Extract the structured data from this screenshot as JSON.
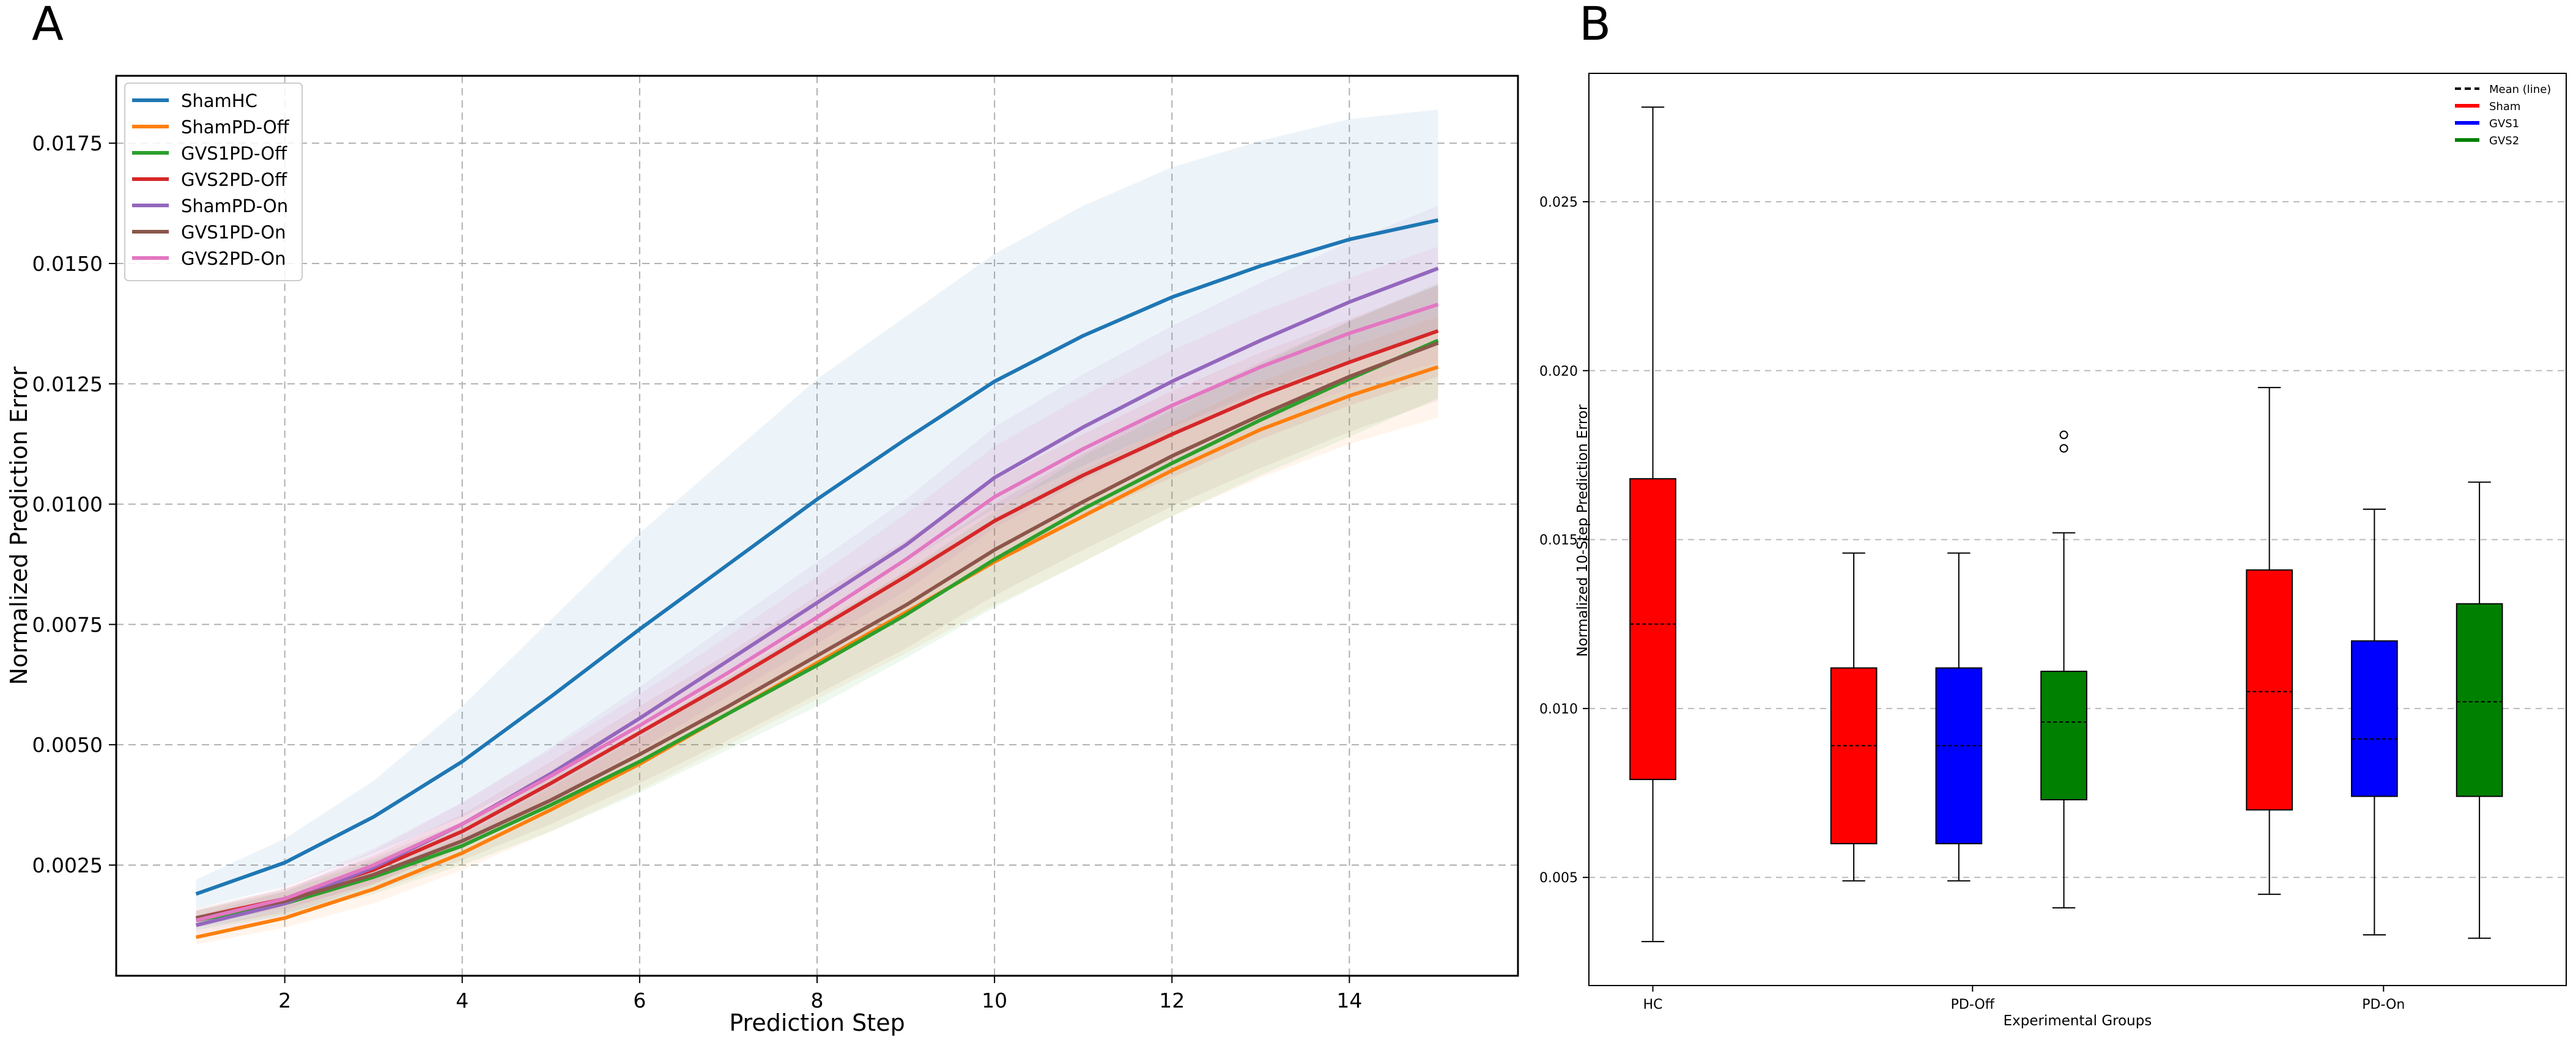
{
  "panel_a_label": "A",
  "panel_b_label": "B",
  "chart_data": [
    {
      "type": "line",
      "panel": "A",
      "title": "",
      "xlabel": "Prediction Step",
      "ylabel": "Normalized Prediction Error",
      "xlim": [
        0.1,
        15.9
      ],
      "ylim": [
        0.0002,
        0.0189
      ],
      "xticks": [
        2,
        4,
        6,
        8,
        10,
        12,
        14
      ],
      "yticks": [
        0.0025,
        0.005,
        0.0075,
        0.01,
        0.0125,
        0.015,
        0.0175
      ],
      "ytick_labels": [
        "0.0025",
        "0.0050",
        "0.0075",
        "0.0100",
        "0.0125",
        "0.0150",
        "0.0175"
      ],
      "grid": true,
      "legend_position": "top-left",
      "x": [
        1,
        2,
        3,
        4,
        5,
        6,
        7,
        8,
        9,
        10,
        11,
        12,
        13,
        14,
        15
      ],
      "series": [
        {
          "name": "ShamHC",
          "color": "#1f77b4",
          "values": [
            0.0019,
            0.00255,
            0.0035,
            0.00465,
            0.006,
            0.0074,
            0.00875,
            0.0101,
            0.01135,
            0.01255,
            0.0135,
            0.0143,
            0.01495,
            0.0155,
            0.0159
          ],
          "lower": [
            0.0016,
            0.00205,
            0.00275,
            0.0035,
            0.0044,
            0.0054,
            0.0065,
            0.0076,
            0.0088,
            0.0099,
            0.0108,
            0.0116,
            0.01235,
            0.013,
            0.0136
          ],
          "upper": [
            0.0022,
            0.00305,
            0.00425,
            0.0058,
            0.0076,
            0.0094,
            0.011,
            0.0126,
            0.0139,
            0.0152,
            0.0162,
            0.017,
            0.01755,
            0.018,
            0.0182
          ]
        },
        {
          "name": "ShamPD-Off",
          "color": "#ff7f0e",
          "values": [
            0.001,
            0.0014,
            0.002,
            0.00275,
            0.00365,
            0.0046,
            0.00565,
            0.0067,
            0.00775,
            0.0088,
            0.00975,
            0.0107,
            0.01155,
            0.01225,
            0.01285
          ],
          "lower": [
            0.00085,
            0.0012,
            0.0017,
            0.0024,
            0.0032,
            0.00405,
            0.005,
            0.00595,
            0.0069,
            0.0079,
            0.0088,
            0.00975,
            0.01055,
            0.01125,
            0.0118
          ],
          "upper": [
            0.00115,
            0.0016,
            0.0023,
            0.0031,
            0.0041,
            0.00515,
            0.0063,
            0.00745,
            0.0086,
            0.0097,
            0.0107,
            0.01165,
            0.01255,
            0.01325,
            0.0139
          ]
        },
        {
          "name": "GVS1PD-Off",
          "color": "#2ca02c",
          "values": [
            0.00135,
            0.0017,
            0.00225,
            0.0029,
            0.00375,
            0.00465,
            0.00565,
            0.00665,
            0.0077,
            0.00885,
            0.0099,
            0.01085,
            0.01175,
            0.0126,
            0.0134
          ],
          "lower": [
            0.00115,
            0.00145,
            0.0019,
            0.0025,
            0.0032,
            0.004,
            0.0049,
            0.0058,
            0.0068,
            0.00785,
            0.0088,
            0.00975,
            0.0106,
            0.0114,
            0.0122
          ],
          "upper": [
            0.00155,
            0.00195,
            0.0026,
            0.0033,
            0.0043,
            0.0053,
            0.0064,
            0.0075,
            0.0086,
            0.00985,
            0.011,
            0.01195,
            0.0129,
            0.0138,
            0.0146
          ]
        },
        {
          "name": "GVS2PD-Off",
          "color": "#d62728",
          "values": [
            0.0014,
            0.0018,
            0.0024,
            0.0032,
            0.0042,
            0.00525,
            0.0063,
            0.0074,
            0.0085,
            0.00965,
            0.0106,
            0.01145,
            0.01225,
            0.01295,
            0.0136
          ],
          "lower": [
            0.00125,
            0.0016,
            0.0021,
            0.00285,
            0.00375,
            0.0047,
            0.0057,
            0.0067,
            0.00775,
            0.0088,
            0.00975,
            0.01055,
            0.01135,
            0.01205,
            0.01265
          ],
          "upper": [
            0.00155,
            0.002,
            0.0027,
            0.00355,
            0.00465,
            0.0058,
            0.0069,
            0.0081,
            0.00925,
            0.0105,
            0.01145,
            0.01235,
            0.01315,
            0.01385,
            0.01455
          ]
        },
        {
          "name": "ShamPD-On",
          "color": "#9467bd",
          "values": [
            0.00125,
            0.0017,
            0.00245,
            0.00335,
            0.0044,
            0.00555,
            0.00675,
            0.00795,
            0.00915,
            0.01055,
            0.0116,
            0.01255,
            0.0134,
            0.0142,
            0.0149
          ],
          "lower": [
            0.00105,
            0.00145,
            0.0021,
            0.0029,
            0.00385,
            0.0049,
            0.006,
            0.0071,
            0.0082,
            0.0095,
            0.0105,
            0.0114,
            0.0122,
            0.01295,
            0.0136
          ],
          "upper": [
            0.00145,
            0.00195,
            0.0028,
            0.0038,
            0.00495,
            0.0062,
            0.0075,
            0.0088,
            0.0101,
            0.0116,
            0.0127,
            0.0137,
            0.0146,
            0.01545,
            0.0162
          ]
        },
        {
          "name": "GVS1PD-On",
          "color": "#8c564b",
          "values": [
            0.0014,
            0.00175,
            0.0023,
            0.003,
            0.00385,
            0.0048,
            0.0058,
            0.00685,
            0.0079,
            0.00905,
            0.01005,
            0.011,
            0.01185,
            0.01265,
            0.01335
          ],
          "lower": [
            0.0012,
            0.0015,
            0.00195,
            0.0026,
            0.00335,
            0.0042,
            0.0051,
            0.00605,
            0.007,
            0.0081,
            0.00905,
            0.00995,
            0.01075,
            0.0115,
            0.01215
          ],
          "upper": [
            0.0016,
            0.002,
            0.00265,
            0.0034,
            0.00435,
            0.0054,
            0.0065,
            0.00765,
            0.0088,
            0.01,
            0.01105,
            0.01205,
            0.01295,
            0.0138,
            0.01455
          ]
        },
        {
          "name": "GVS2PD-On",
          "color": "#e377c2",
          "values": [
            0.00135,
            0.0018,
            0.0025,
            0.00335,
            0.00435,
            0.0054,
            0.0065,
            0.00765,
            0.00885,
            0.01015,
            0.01115,
            0.01205,
            0.01285,
            0.01355,
            0.01415
          ],
          "lower": [
            0.00115,
            0.00155,
            0.00215,
            0.0029,
            0.0038,
            0.00475,
            0.00575,
            0.0068,
            0.0079,
            0.0091,
            0.01005,
            0.0109,
            0.0117,
            0.0124,
            0.01295
          ],
          "upper": [
            0.00155,
            0.00205,
            0.00285,
            0.0038,
            0.0049,
            0.00605,
            0.00725,
            0.0085,
            0.0098,
            0.0112,
            0.01225,
            0.0132,
            0.014,
            0.0147,
            0.01535
          ]
        }
      ]
    },
    {
      "type": "box",
      "panel": "B",
      "title": "",
      "xlabel": "Experimental Groups",
      "ylabel": "Normalized 10-Step Prediction Error",
      "ylim": [
        0.0018,
        0.0288
      ],
      "yticks": [
        0.005,
        0.01,
        0.015,
        0.02,
        0.025
      ],
      "ytick_labels": [
        "0.005",
        "0.010",
        "0.015",
        "0.020",
        "0.025"
      ],
      "grid": "horizontal dashed",
      "legend_position": "top-right",
      "legend": [
        {
          "label": "Mean (line)",
          "color": "#000000",
          "style": "dashed"
        },
        {
          "label": "Sham",
          "color": "#ff0000",
          "style": "solid"
        },
        {
          "label": "GVS1",
          "color": "#0000ff",
          "style": "solid"
        },
        {
          "label": "GVS2",
          "color": "#008000",
          "style": "solid"
        }
      ],
      "groups": [
        {
          "name": "HC",
          "position": 0
        },
        {
          "name": "PD-Off",
          "position": 3.5
        },
        {
          "name": "PD-On",
          "position": 8
        }
      ],
      "boxes": [
        {
          "group": "HC",
          "condition": "Sham",
          "color": "#ff0000",
          "position": 0,
          "whisker_low": 0.0031,
          "q1": 0.0079,
          "median": 0.0125,
          "q3": 0.0168,
          "whisker_high": 0.0278,
          "outliers": []
        },
        {
          "group": "PD-Off",
          "condition": "Sham",
          "color": "#ff0000",
          "position": 2.2,
          "whisker_low": 0.0049,
          "q1": 0.006,
          "median": 0.0089,
          "q3": 0.0112,
          "whisker_high": 0.0146,
          "outliers": []
        },
        {
          "group": "PD-Off",
          "condition": "GVS1",
          "color": "#0000ff",
          "position": 3.35,
          "whisker_low": 0.0049,
          "q1": 0.006,
          "median": 0.0089,
          "q3": 0.0112,
          "whisker_high": 0.0146,
          "outliers": []
        },
        {
          "group": "PD-Off",
          "condition": "GVS2",
          "color": "#008000",
          "position": 4.5,
          "whisker_low": 0.0041,
          "q1": 0.0073,
          "median": 0.0096,
          "q3": 0.0111,
          "whisker_high": 0.0152,
          "outliers": [
            0.0177,
            0.0181
          ]
        },
        {
          "group": "PD-On",
          "condition": "Sham",
          "color": "#ff0000",
          "position": 6.75,
          "whisker_low": 0.0045,
          "q1": 0.007,
          "median": 0.0105,
          "q3": 0.0141,
          "whisker_high": 0.0195,
          "outliers": []
        },
        {
          "group": "PD-On",
          "condition": "GVS1",
          "color": "#0000ff",
          "position": 7.9,
          "whisker_low": 0.0033,
          "q1": 0.0074,
          "median": 0.0091,
          "q3": 0.012,
          "whisker_high": 0.0159,
          "outliers": []
        },
        {
          "group": "PD-On",
          "condition": "GVS2",
          "color": "#008000",
          "position": 9.05,
          "whisker_low": 0.0032,
          "q1": 0.0074,
          "median": 0.0102,
          "q3": 0.0131,
          "whisker_high": 0.0167,
          "outliers": []
        }
      ]
    }
  ]
}
